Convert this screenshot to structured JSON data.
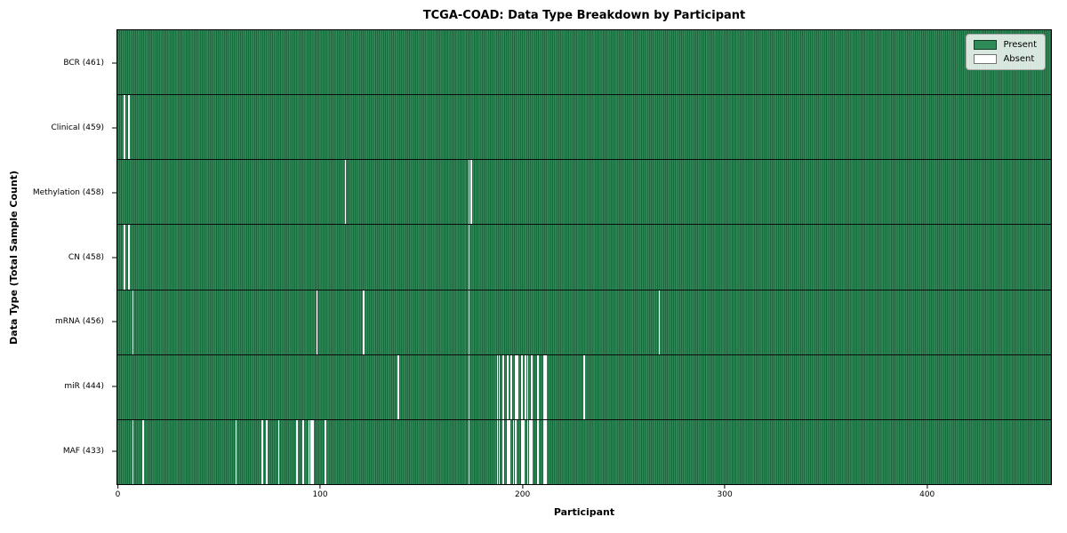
{
  "chart_data": {
    "type": "heatmap",
    "title": "TCGA-COAD: Data Type Breakdown by Participant",
    "xlabel": "Participant",
    "ylabel": "Data Type (Total Sample Count)",
    "x_ticks": [
      0,
      100,
      200,
      300,
      400
    ],
    "x_range": [
      0,
      461
    ],
    "total_participants": 461,
    "grid": false,
    "legend_position": "upper right",
    "legend_items": [
      {
        "label": "Present",
        "color": "#2E8B57"
      },
      {
        "label": "Absent",
        "color": "#ffffff"
      }
    ],
    "colors": {
      "present": "#2E8B57",
      "absent": "#ffffff",
      "cell_edge": "#0a160d"
    },
    "rows": [
      {
        "name": "BCR",
        "label": "BCR (461)",
        "present_count": 461,
        "absent_participants": []
      },
      {
        "name": "Clinical",
        "label": "Clinical (459)",
        "present_count": 459,
        "absent_participants": [
          3,
          5
        ]
      },
      {
        "name": "Methylation",
        "label": "Methylation (458)",
        "present_count": 458,
        "absent_participants": [
          112,
          173,
          174
        ]
      },
      {
        "name": "CN",
        "label": "CN (458)",
        "present_count": 458,
        "absent_participants": [
          3,
          5,
          173
        ]
      },
      {
        "name": "mRNA",
        "label": "mRNA (456)",
        "present_count": 456,
        "absent_participants": [
          7,
          98,
          121,
          173,
          267
        ]
      },
      {
        "name": "miR",
        "label": "miR (444)",
        "present_count": 444,
        "absent_participants": [
          138,
          173,
          187,
          188,
          190,
          192,
          194,
          196,
          197,
          199,
          201,
          202,
          204,
          207,
          210,
          211,
          230
        ]
      },
      {
        "name": "MAF",
        "label": "MAF (433)",
        "present_count": 433,
        "absent_participants": [
          7,
          12,
          58,
          71,
          73,
          79,
          88,
          91,
          94,
          95,
          96,
          102,
          173,
          187,
          188,
          190,
          192,
          193,
          195,
          196,
          199,
          200,
          202,
          203,
          204,
          207,
          210,
          211
        ]
      }
    ]
  }
}
